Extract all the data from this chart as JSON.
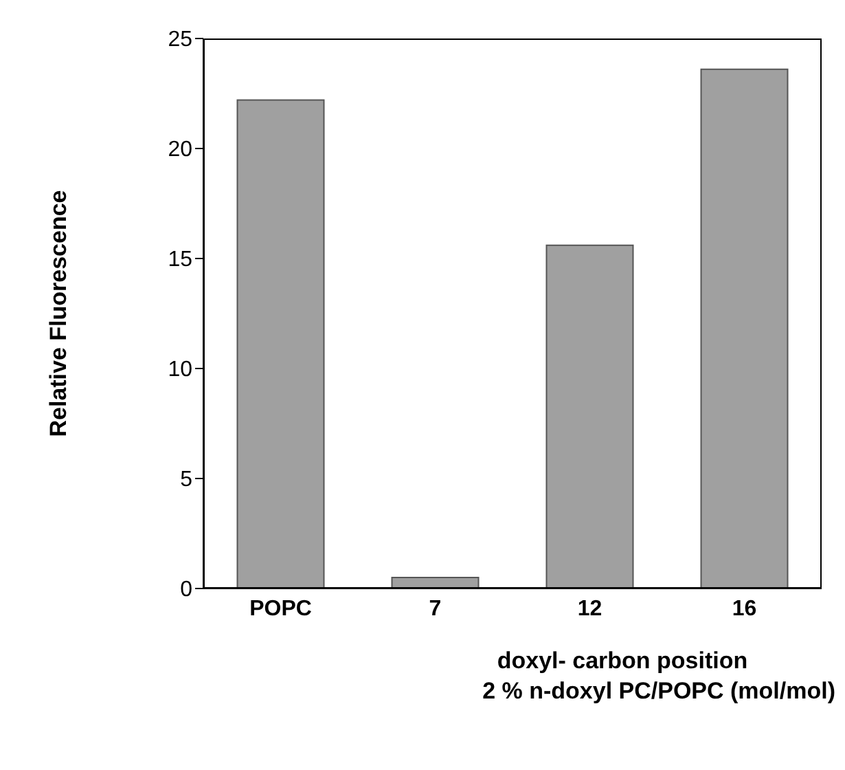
{
  "chart_data": {
    "type": "bar",
    "ylabel": "Relative Fluorescence",
    "xlabel": "doxyl- carbon position\n2 % n-doxyl PC/POPC (mol/mol)",
    "categories": [
      "POPC",
      "7",
      "12",
      "16"
    ],
    "values": [
      22.2,
      0.5,
      15.6,
      23.6
    ],
    "color": "#a0a0a0",
    "ylim": [
      0,
      25
    ],
    "yticks": [
      0,
      5,
      10,
      15,
      20,
      25
    ],
    "grid": false,
    "legend": false
  }
}
